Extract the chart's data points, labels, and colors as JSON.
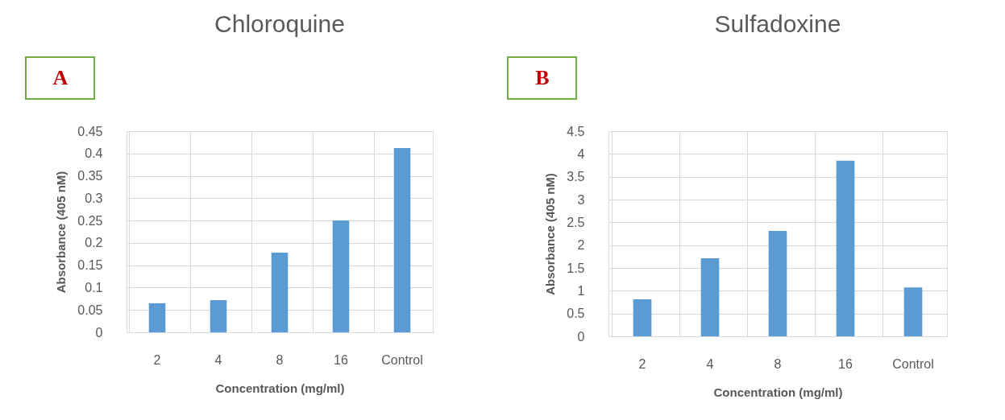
{
  "chart_data": [
    {
      "type": "bar",
      "title": "Chloroquine",
      "xlabel": "Concentration (mg/ml)",
      "ylabel": "Absorbance (405 nM)",
      "annotations": [
        "A"
      ],
      "categories": [
        "2",
        "4",
        "8",
        "16",
        "Control"
      ],
      "values": [
        0.065,
        0.072,
        0.178,
        0.25,
        0.412
      ],
      "color": "#5b9bd5",
      "ylim": [
        0,
        0.45
      ],
      "yticks": [
        {
          "value": 0,
          "label": "0"
        },
        0.05,
        0.1,
        0.15,
        0.2,
        0.25,
        0.3,
        0.35,
        0.4,
        0.45
      ],
      "grid": true
    },
    {
      "type": "bar",
      "title": "Sulfadoxine",
      "xlabel": "Concentration (mg/ml)",
      "ylabel": "Absorbance (405 nM)",
      "annotations": [
        "B"
      ],
      "categories": [
        "2",
        "4",
        "8",
        "16",
        "Control"
      ],
      "values": [
        0.81,
        1.71,
        2.31,
        3.85,
        1.07
      ],
      "color": "#5b9bd5",
      "ylim": [
        0,
        4.5
      ],
      "yticks": [
        0,
        0.5,
        1,
        1.5,
        2,
        2.5,
        3,
        3.5,
        4,
        4.5
      ],
      "grid": true
    }
  ]
}
